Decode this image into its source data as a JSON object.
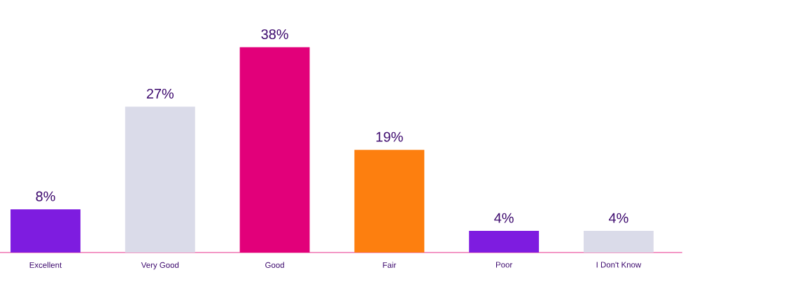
{
  "chart_data": {
    "type": "bar",
    "categories": [
      "Excellent",
      "Very Good",
      "Good",
      "Fair",
      "Poor",
      "I Don't Know"
    ],
    "values": [
      8,
      27,
      38,
      19,
      4,
      4
    ],
    "colors": [
      "#7e1ce0",
      "#dadbe9",
      "#e2007a",
      "#fd7f0f",
      "#7e1ce0",
      "#dadbe9"
    ],
    "value_labels": [
      "8%",
      "27%",
      "38%",
      "19%",
      "4%",
      "4%"
    ]
  }
}
